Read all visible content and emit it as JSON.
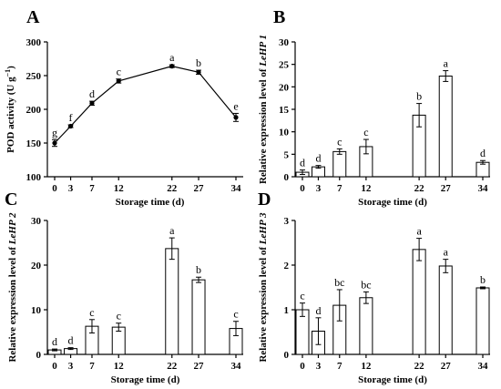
{
  "chart_data": [
    {
      "panel": "A",
      "type": "line",
      "xlabel": "Storage time (d)",
      "ylabel_parts": [
        "POD activity (U g",
        "−1",
        ")"
      ],
      "categories": [
        "0",
        "3",
        "7",
        "12",
        "22",
        "27",
        "34"
      ],
      "x": [
        0,
        3,
        7,
        12,
        22,
        27,
        34
      ],
      "values": [
        150,
        175,
        209,
        242,
        264,
        255,
        188
      ],
      "errors": [
        5,
        2,
        3,
        3,
        2,
        3,
        6
      ],
      "letters": [
        "g",
        "f",
        "d",
        "c",
        "a",
        "b",
        "e"
      ],
      "ylim": [
        100,
        300
      ],
      "yticks": [
        "100",
        "150",
        "200",
        "250",
        "300"
      ]
    },
    {
      "panel": "B",
      "type": "bar",
      "xlabel": "Storage time (d)",
      "ylabel_parts": [
        "Relative expression level of ",
        "LeHP 1"
      ],
      "categories": [
        "0",
        "3",
        "7",
        "12",
        "22",
        "27",
        "34"
      ],
      "x": [
        0,
        3,
        7,
        12,
        22,
        27,
        34
      ],
      "values": [
        1.0,
        2.2,
        5.6,
        6.7,
        13.7,
        22.4,
        3.2
      ],
      "errors": [
        0.5,
        0.3,
        0.6,
        1.6,
        2.6,
        1.2,
        0.4
      ],
      "letters": [
        "d",
        "d",
        "c",
        "c",
        "b",
        "a",
        "d"
      ],
      "ylim": [
        0,
        30
      ],
      "yticks": [
        "0",
        "5",
        "10",
        "15",
        "20",
        "25",
        "30"
      ]
    },
    {
      "panel": "C",
      "type": "bar",
      "xlabel": "Storage time (d)",
      "ylabel_parts": [
        "Relative expression level of ",
        "LeHP 2"
      ],
      "categories": [
        "0",
        "3",
        "7",
        "12",
        "22",
        "27",
        "34"
      ],
      "x": [
        0,
        3,
        7,
        12,
        22,
        27,
        34
      ],
      "values": [
        1.0,
        1.3,
        6.3,
        6.1,
        23.7,
        16.7,
        5.8
      ],
      "errors": [
        0.2,
        0.2,
        1.5,
        0.9,
        2.4,
        0.6,
        1.6
      ],
      "letters": [
        "d",
        "d",
        "c",
        "c",
        "a",
        "b",
        "c"
      ],
      "ylim": [
        0,
        30
      ],
      "yticks": [
        "0",
        "10",
        "20",
        "30"
      ]
    },
    {
      "panel": "D",
      "type": "bar",
      "xlabel": "Storage time (d)",
      "ylabel_parts": [
        "Relative expression level of ",
        "LeHP 3"
      ],
      "categories": [
        "0",
        "3",
        "7",
        "12",
        "22",
        "27",
        "34"
      ],
      "x": [
        0,
        3,
        7,
        12,
        22,
        27,
        34
      ],
      "values": [
        1.0,
        0.52,
        1.1,
        1.27,
        2.35,
        1.98,
        1.49
      ],
      "errors": [
        0.15,
        0.3,
        0.35,
        0.13,
        0.25,
        0.15,
        0.02
      ],
      "letters": [
        "c",
        "d",
        "bc",
        "bc",
        "a",
        "a",
        "b"
      ],
      "ylim": [
        0,
        3
      ],
      "yticks": [
        "0",
        "1",
        "2",
        "3"
      ]
    }
  ]
}
